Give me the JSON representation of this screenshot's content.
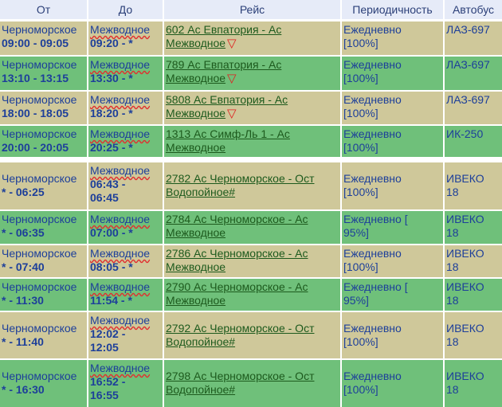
{
  "headers": [
    "От",
    "До",
    "Рейс",
    "Периодичность",
    "Автобус"
  ],
  "rows": [
    {
      "color": "olive",
      "from_place": "Черноморское",
      "from_time": "09:00 - 09:05",
      "to_place": "Межводное",
      "to_time": "09:20 - *",
      "route_l1": "602 Ас Евпатория - Ас",
      "route_l2": "Межводное",
      "mark": "▽",
      "period_l1": "Ежедневно",
      "period_l2": "[100%]",
      "bus_l1": "ЛАЗ-697",
      "bus_l2": ""
    },
    {
      "color": "green",
      "from_place": "Черноморское",
      "from_time": "13:10 - 13:15",
      "to_place": "Межводное",
      "to_time": "13:30 - *",
      "route_l1": "789 Ас Евпатория - Ас",
      "route_l2": "Межводное",
      "mark": "▽",
      "period_l1": "Ежедневно",
      "period_l2": "[100%]",
      "bus_l1": "ЛАЗ-697",
      "bus_l2": ""
    },
    {
      "color": "olive",
      "from_place": "Черноморское",
      "from_time": "18:00 - 18:05",
      "to_place": "Межводное",
      "to_time": "18:20 - *",
      "route_l1": "5808 Ас Евпатория - Ас",
      "route_l2": "Межводное",
      "mark": "▽",
      "period_l1": "Ежедневно",
      "period_l2": "[100%]",
      "bus_l1": "ЛАЗ-697",
      "bus_l2": ""
    },
    {
      "color": "green",
      "from_place": "Черноморское",
      "from_time": "20:00 - 20:05",
      "to_place": "Межводное",
      "to_time": "20:25 - *",
      "route_l1": "1313 Ас Симф-Ль 1 - Ас",
      "route_l2": "Межводное",
      "mark": "",
      "period_l1": "Ежедневно",
      "period_l2": "[100%]",
      "bus_l1": "ИК-250",
      "bus_l2": ""
    },
    {
      "color": "olive",
      "from_place": "Черноморское",
      "from_time": "* - 06:25",
      "to_place": "Межводное",
      "to_time": "06:43 -",
      "to_time2": "06:45",
      "route_l1": "2782 Ас Черноморское - Ост",
      "route_l2": "Водопойное#",
      "mark": "",
      "period_l1": "Ежедневно",
      "period_l2": "[100%]",
      "bus_l1": "ИВЕКО",
      "bus_l2": "18"
    },
    {
      "color": "green",
      "from_place": "Черноморское",
      "from_time": "* - 06:35",
      "to_place": "Межводное",
      "to_time": "07:00 - *",
      "route_l1": "2784 Ас Черноморское - Ас",
      "route_l2": "Межводное",
      "mark": "",
      "period_l1": "Ежедневно [",
      "period_l2": "95%]",
      "bus_l1": "ИВЕКО",
      "bus_l2": "18"
    },
    {
      "color": "olive",
      "from_place": "Черноморское",
      "from_time": "* - 07:40",
      "to_place": "Межводное",
      "to_time": "08:05 - *",
      "route_l1": "2786 Ас Черноморское - Ас",
      "route_l2": "Межводное",
      "mark": "",
      "period_l1": "Ежедневно",
      "period_l2": "[100%]",
      "bus_l1": "ИВЕКО",
      "bus_l2": "18"
    },
    {
      "color": "green",
      "from_place": "Черноморское",
      "from_time": "* - 11:30",
      "to_place": "Межводное",
      "to_time": "11:54 - *",
      "route_l1": "2790 Ас Черноморское - Ас",
      "route_l2": "Межводное",
      "mark": "",
      "period_l1": "Ежедневно [",
      "period_l2": "95%]",
      "bus_l1": "ИВЕКО",
      "bus_l2": "18"
    },
    {
      "color": "olive",
      "from_place": "Черноморское",
      "from_time": "* - 11:40",
      "to_place": "Межводное",
      "to_time": "12:02 -",
      "to_time2": "12:05",
      "route_l1": "2792 Ас Черноморское - Ост",
      "route_l2": "Водопойное#",
      "mark": "",
      "period_l1": "Ежедневно",
      "period_l2": "[100%]",
      "bus_l1": "ИВЕКО",
      "bus_l2": "18"
    },
    {
      "color": "green",
      "from_place": "Черноморское",
      "from_time": "* - 16:30",
      "to_place": "Межводное",
      "to_time": "16:52 -",
      "to_time2": "16:55",
      "route_l1": "2798 Ас Черноморское - Ост",
      "route_l2": "Водопойное#",
      "mark": "",
      "period_l1": "Ежедневно",
      "period_l2": "[100%]",
      "bus_l1": "ИВЕКО",
      "bus_l2": "18"
    }
  ]
}
